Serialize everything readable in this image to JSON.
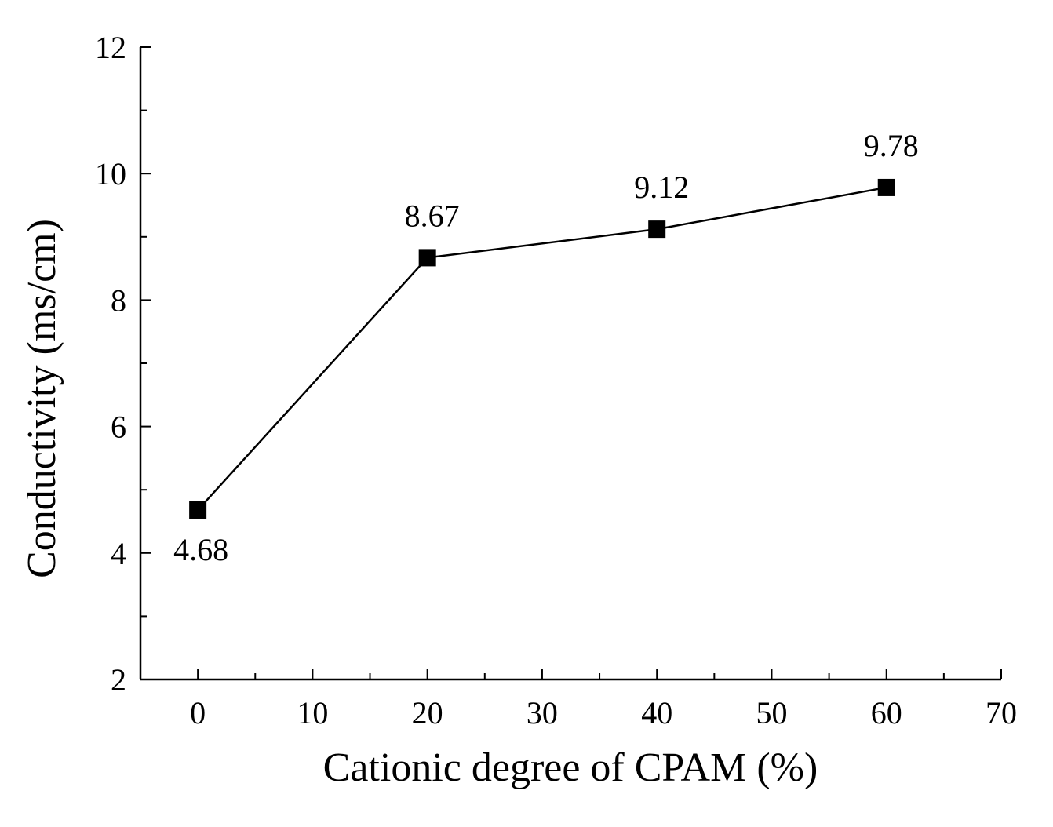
{
  "chart_data": {
    "type": "line",
    "title": "",
    "xlabel": "Cationic degree of CPAM (%)",
    "ylabel": "Conductivity (ms/cm)",
    "xlim": [
      -5,
      70
    ],
    "ylim": [
      2,
      12
    ],
    "x_ticks": [
      0,
      10,
      20,
      30,
      40,
      50,
      60,
      70
    ],
    "y_ticks": [
      2,
      4,
      6,
      8,
      10,
      12
    ],
    "grid": false,
    "series": [
      {
        "name": "Conductivity",
        "marker": "square",
        "color": "#000000",
        "x": [
          0,
          20,
          40,
          60
        ],
        "values": [
          4.68,
          8.67,
          9.12,
          9.78
        ],
        "labels": [
          "4.68",
          "8.67",
          "9.12",
          "9.78"
        ],
        "label_positions": [
          "below",
          "above",
          "above",
          "above"
        ]
      }
    ]
  }
}
